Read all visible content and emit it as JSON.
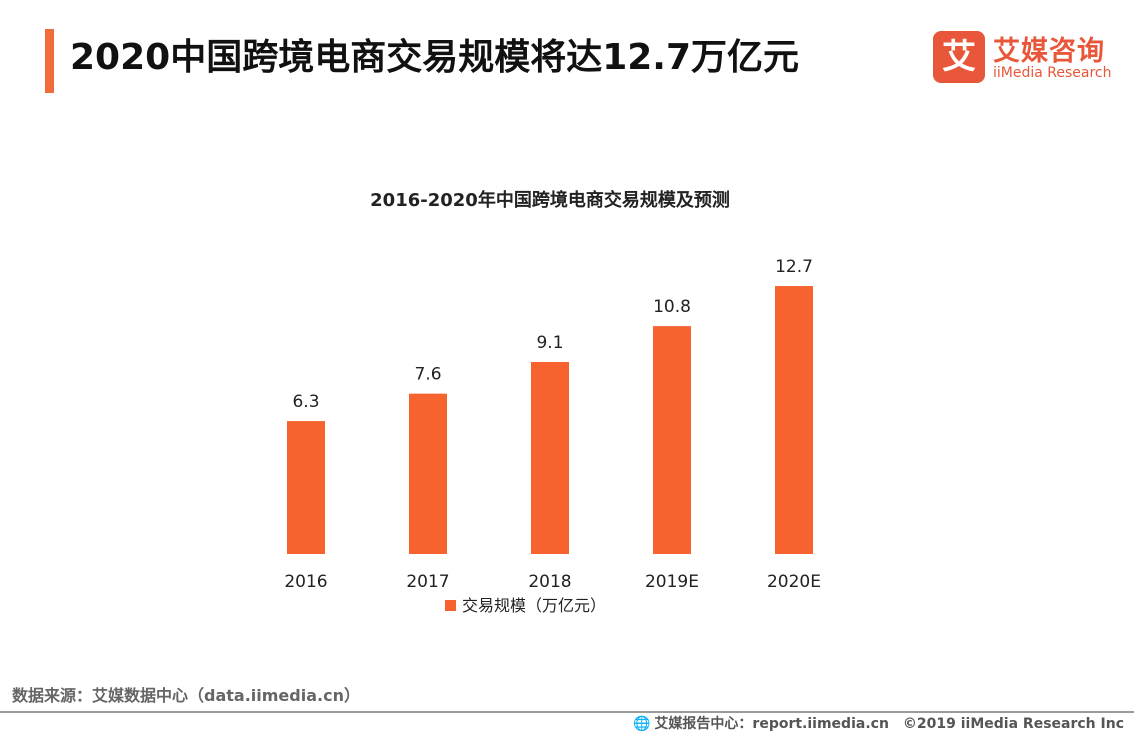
{
  "header": {
    "title": "2020中国跨境电商交易规模将达12.7万亿元"
  },
  "logo": {
    "mark": "艾",
    "name_cn": "艾媒咨询",
    "name_en": "iiMedia Research"
  },
  "chart_data": {
    "type": "bar",
    "title": "2016-2020年中国跨境电商交易规模及预测",
    "categories": [
      "2016",
      "2017",
      "2018",
      "2019E",
      "2020E"
    ],
    "series": [
      {
        "name": "交易规模（万亿元）",
        "values": [
          6.3,
          7.6,
          9.1,
          10.8,
          12.7
        ]
      }
    ],
    "value_labels": [
      "6.3",
      "7.6",
      "9.1",
      "10.8",
      "12.7"
    ],
    "xlabel": "",
    "ylabel": "",
    "ylim": [
      0,
      14
    ],
    "grid": false,
    "legend_position": "bottom",
    "bar_color": "#f7632f"
  },
  "footer": {
    "source": "数据来源：艾媒数据中心（data.iimedia.cn）",
    "report_center": "艾媒报告中心：report.iimedia.cn",
    "copyright": "©2019  iiMedia Research  Inc"
  }
}
